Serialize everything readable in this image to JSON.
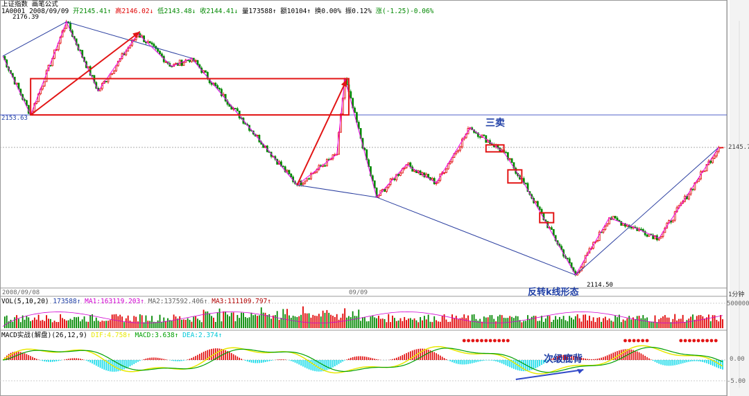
{
  "header": {
    "title_line": "上证指数  画笔公式",
    "code": "1A0001",
    "date": "2008/09/09",
    "open": "开2145.41↑",
    "high": "高2146.02↓",
    "low": "低2143.48↓",
    "close": "收2144.41↓",
    "volume": "量173588↑",
    "amount": "额10104↑",
    "turnover": "换0.00%",
    "amplitude": "振0.12%",
    "change": "涨(-1.25)-0.06%"
  },
  "price_labels": {
    "high": "2176.39",
    "left_level": "2153.63",
    "current": "2145.7",
    "low": "2114.50"
  },
  "annotations": {
    "sell3": "三卖",
    "reversal": "反转k线形态",
    "divergence": "次级底背"
  },
  "dates": {
    "left": "2008/09/08",
    "mid": "09/09",
    "period": "1分钟"
  },
  "volume_panel": {
    "title": "VOL(5,10,20)",
    "value": "173588↑",
    "ma1": "MA1:163119.203↑",
    "ma2": "MA2:137592.406↑",
    "ma3": "MA3:111109.797↑",
    "tick": "500000"
  },
  "macd_panel": {
    "title": "MACD实战(解盘)(26,12,9)",
    "dif": "DIF:4.758↑",
    "macd": "MACD:3.638↑",
    "dea": "DEA:2.374↑",
    "tick_zero": "0.00",
    "tick_neg": "-5.00"
  },
  "colors": {
    "up": "#e00000",
    "down": "#008800",
    "bi_line": "#ee00ee",
    "seg_line": "#2b3fa0",
    "box": "#e21515",
    "annot": "#1f3fa6",
    "macd_pos": "#e00000",
    "macd_neg": "#00d8e8",
    "dif_line": "#e8e800",
    "dea_line": "#00a000"
  },
  "chart_data": {
    "type": "line",
    "title": "上证指数",
    "ylabel": "",
    "pivots": [
      {
        "bar": 0,
        "price": 2168.0
      },
      {
        "bar": 14,
        "price": 2153.63
      },
      {
        "bar": 32,
        "price": 2176.39
      },
      {
        "bar": 48,
        "price": 2159.5
      },
      {
        "bar": 68,
        "price": 2173.5
      },
      {
        "bar": 85,
        "price": 2165.5
      },
      {
        "bar": 95,
        "price": 2167.5
      },
      {
        "bar": 148,
        "price": 2136.5
      },
      {
        "bar": 168,
        "price": 2144.0
      },
      {
        "bar": 172,
        "price": 2162.5
      },
      {
        "bar": 188,
        "price": 2133.5
      },
      {
        "bar": 203,
        "price": 2141.5
      },
      {
        "bar": 218,
        "price": 2137.0
      },
      {
        "bar": 235,
        "price": 2150.5
      },
      {
        "bar": 252,
        "price": 2144.5
      },
      {
        "bar": 262,
        "price": 2137.0
      },
      {
        "bar": 288,
        "price": 2114.5
      },
      {
        "bar": 305,
        "price": 2128.5
      },
      {
        "bar": 318,
        "price": 2126.0
      },
      {
        "bar": 330,
        "price": 2123.5
      },
      {
        "bar": 360,
        "price": 2145.7
      }
    ],
    "ylim": [
      2112,
      2178
    ],
    "volume_ylim": [
      0,
      700000
    ],
    "macd_ylim": [
      -8,
      6
    ]
  }
}
